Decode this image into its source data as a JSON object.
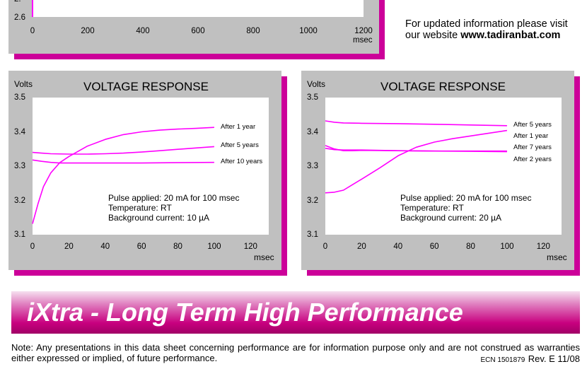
{
  "top_chart": {
    "y_tick_partial": "2.",
    "y_tick": "2.6",
    "x_ticks": [
      "0",
      "200",
      "400",
      "600",
      "800",
      "1000",
      "1200"
    ],
    "x_unit": "msec"
  },
  "website_note": {
    "line1": "For updated information please visit",
    "line2_prefix": "our website ",
    "line2_url": "www.tadiranbat.com"
  },
  "chart_data": [
    {
      "type": "line",
      "title": "VOLTAGE RESPONSE",
      "ylabel": "Volts",
      "xlabel": "msec",
      "y_ticks": [
        "3.5",
        "3.4",
        "3.3",
        "3.2",
        "3.1"
      ],
      "x_ticks": [
        "0",
        "20",
        "40",
        "60",
        "80",
        "100",
        "120"
      ],
      "xlim": [
        0,
        130
      ],
      "ylim": [
        3.1,
        3.5
      ],
      "grid": false,
      "series": [
        {
          "name": "After 1 year",
          "x": [
            0,
            3,
            6,
            10,
            15,
            20,
            30,
            40,
            50,
            60,
            70,
            80,
            90,
            100
          ],
          "y": [
            3.132,
            3.19,
            3.24,
            3.28,
            3.31,
            3.328,
            3.358,
            3.378,
            3.392,
            3.4,
            3.405,
            3.408,
            3.41,
            3.413
          ]
        },
        {
          "name": "After 5 years",
          "x": [
            0,
            5,
            10,
            20,
            30,
            40,
            50,
            60,
            70,
            80,
            90,
            100
          ],
          "y": [
            3.34,
            3.338,
            3.336,
            3.335,
            3.335,
            3.336,
            3.338,
            3.341,
            3.345,
            3.349,
            3.353,
            3.357
          ]
        },
        {
          "name": "After 10 years",
          "x": [
            0,
            5,
            10,
            15,
            20,
            40,
            60,
            80,
            100
          ],
          "y": [
            3.318,
            3.314,
            3.311,
            3.309,
            3.309,
            3.309,
            3.309,
            3.31,
            3.311
          ]
        }
      ],
      "conditions": [
        "Pulse applied: 20 mA for 100 msec",
        "Temperature: RT",
        "Background current: 10 µA"
      ]
    },
    {
      "type": "line",
      "title": "VOLTAGE RESPONSE",
      "ylabel": "Volts",
      "xlabel": "msec",
      "y_ticks": [
        "3.5",
        "3.4",
        "3.3",
        "3.2",
        "3.1"
      ],
      "x_ticks": [
        "0",
        "20",
        "40",
        "60",
        "80",
        "100",
        "120"
      ],
      "xlim": [
        0,
        130
      ],
      "ylim": [
        3.1,
        3.5
      ],
      "grid": false,
      "series": [
        {
          "name": "After 5 years",
          "x": [
            0,
            5,
            10,
            20,
            40,
            60,
            80,
            100
          ],
          "y": [
            3.432,
            3.428,
            3.426,
            3.425,
            3.424,
            3.422,
            3.42,
            3.418
          ]
        },
        {
          "name": "After 1 year",
          "x": [
            0,
            5,
            10,
            15,
            20,
            30,
            40,
            50,
            60,
            70,
            80,
            90,
            100
          ],
          "y": [
            3.222,
            3.224,
            3.23,
            3.246,
            3.262,
            3.295,
            3.33,
            3.355,
            3.37,
            3.38,
            3.388,
            3.396,
            3.404
          ]
        },
        {
          "name": "After 7 years",
          "x": [
            0,
            5,
            10,
            15,
            20,
            40,
            60,
            80,
            100
          ],
          "y": [
            3.36,
            3.35,
            3.345,
            3.345,
            3.346,
            3.345,
            3.344,
            3.344,
            3.344
          ]
        },
        {
          "name": "After 2 years",
          "x": [
            0,
            5,
            10,
            20,
            40,
            60,
            80,
            100
          ],
          "y": [
            3.352,
            3.348,
            3.347,
            3.347,
            3.345,
            3.344,
            3.343,
            3.342
          ]
        }
      ],
      "conditions": [
        "Pulse applied: 20 mA for 100 msec",
        "Temperature: RT",
        "Background current: 20 µA"
      ]
    }
  ],
  "banner": {
    "text": "iXtra - Long Term High Performance"
  },
  "footer": {
    "note": "Note: Any presentations in this data sheet concerning performance are for information purpose only and are not construed as warranties either expressed or implied, of future performance.",
    "ecn": "ECN 1501879",
    "rev": "Rev. E 11/08"
  },
  "colors": {
    "curve": "#ff00ff",
    "shadow": "#cc0099",
    "panel": "#c0c0c0",
    "banner_start": "#c8007f",
    "banner_end": "#f8e0f0"
  }
}
